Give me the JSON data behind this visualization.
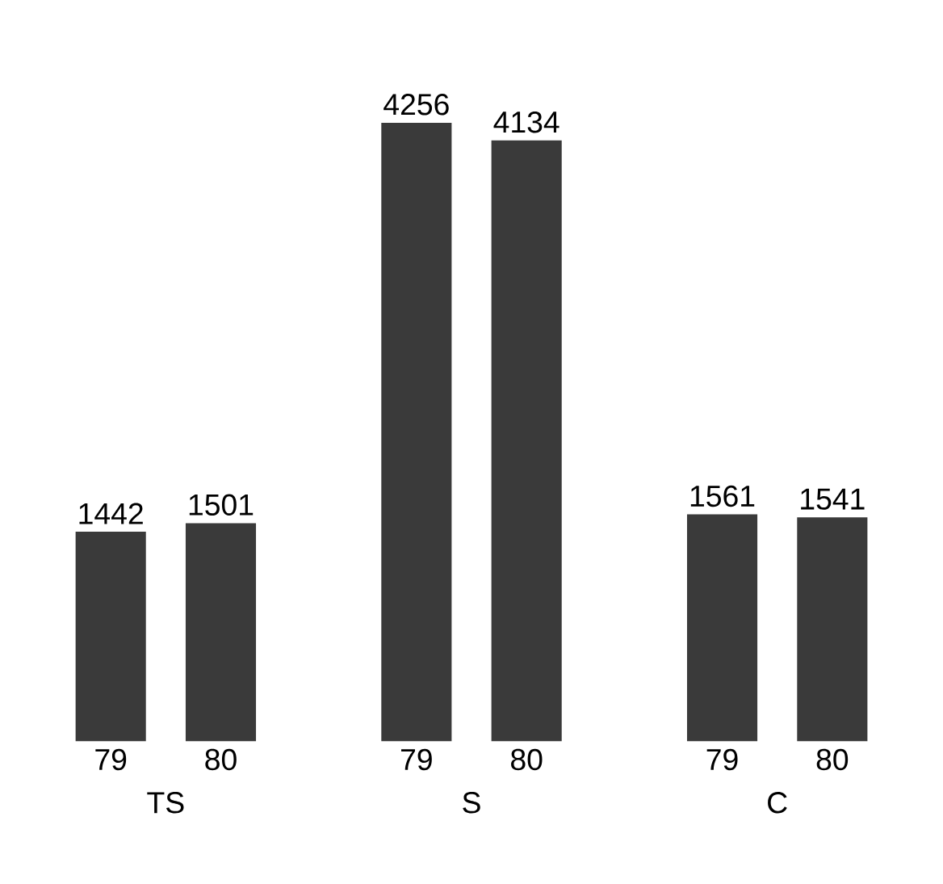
{
  "chart_data": {
    "type": "bar",
    "categories": [
      "TS",
      "S",
      "C"
    ],
    "series": [
      {
        "name": "79",
        "color": "#3a3a3a",
        "values": [
          1442,
          4256,
          1561
        ]
      },
      {
        "name": "80",
        "color": "#3a3a3a",
        "values": [
          1501,
          4134,
          1541
        ]
      }
    ],
    "data_labels": true
  }
}
